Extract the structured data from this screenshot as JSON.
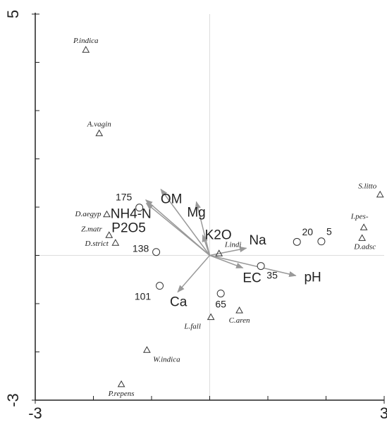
{
  "chart_data": {
    "type": "biplot",
    "xlim": [
      -3,
      3
    ],
    "ylim": [
      -3,
      5
    ],
    "xticks": [
      -3,
      3
    ],
    "yticks": [
      -3,
      5
    ],
    "zero_lines": true,
    "arrow_color": "#999999",
    "point_color": "#333333",
    "species": {
      "labels": [
        "P.indica",
        "A.vagin",
        "D.aegyp",
        "Z.matr",
        "D.strict",
        "S.litto",
        "I.pes-",
        "D.adsc",
        "I.indi",
        "L.fall",
        "C.aren",
        "W.indica",
        "P.repens"
      ],
      "x": [
        -2.13,
        -1.9,
        -1.77,
        -1.73,
        -1.62,
        2.93,
        2.65,
        2.62,
        0.16,
        0.02,
        0.51,
        -1.08,
        -1.52
      ],
      "y": [
        4.26,
        2.53,
        0.85,
        0.42,
        0.26,
        1.26,
        0.58,
        0.36,
        0.04,
        -1.28,
        -1.14,
        -1.96,
        -2.67
      ]
    },
    "sites": {
      "labels": [
        "175",
        "138",
        "101",
        "20",
        "5",
        "35",
        "65"
      ],
      "x": [
        -1.21,
        -0.92,
        -0.86,
        1.5,
        1.92,
        0.88,
        0.19
      ],
      "y": [
        0.99,
        0.07,
        -0.63,
        0.28,
        0.29,
        -0.22,
        -0.79
      ]
    },
    "vectors": {
      "labels": [
        "OM",
        "Mg",
        "NH4-N",
        "P2O5",
        "K2O",
        "Na",
        "EC",
        "pH",
        "Ca"
      ],
      "x": [
        -0.84,
        -0.23,
        -1.1,
        -1.09,
        -0.12,
        0.63,
        0.57,
        1.48,
        -0.55
      ],
      "y": [
        1.37,
        1.11,
        1.15,
        1.08,
        0.42,
        0.15,
        -0.26,
        -0.42,
        -0.76
      ]
    }
  }
}
